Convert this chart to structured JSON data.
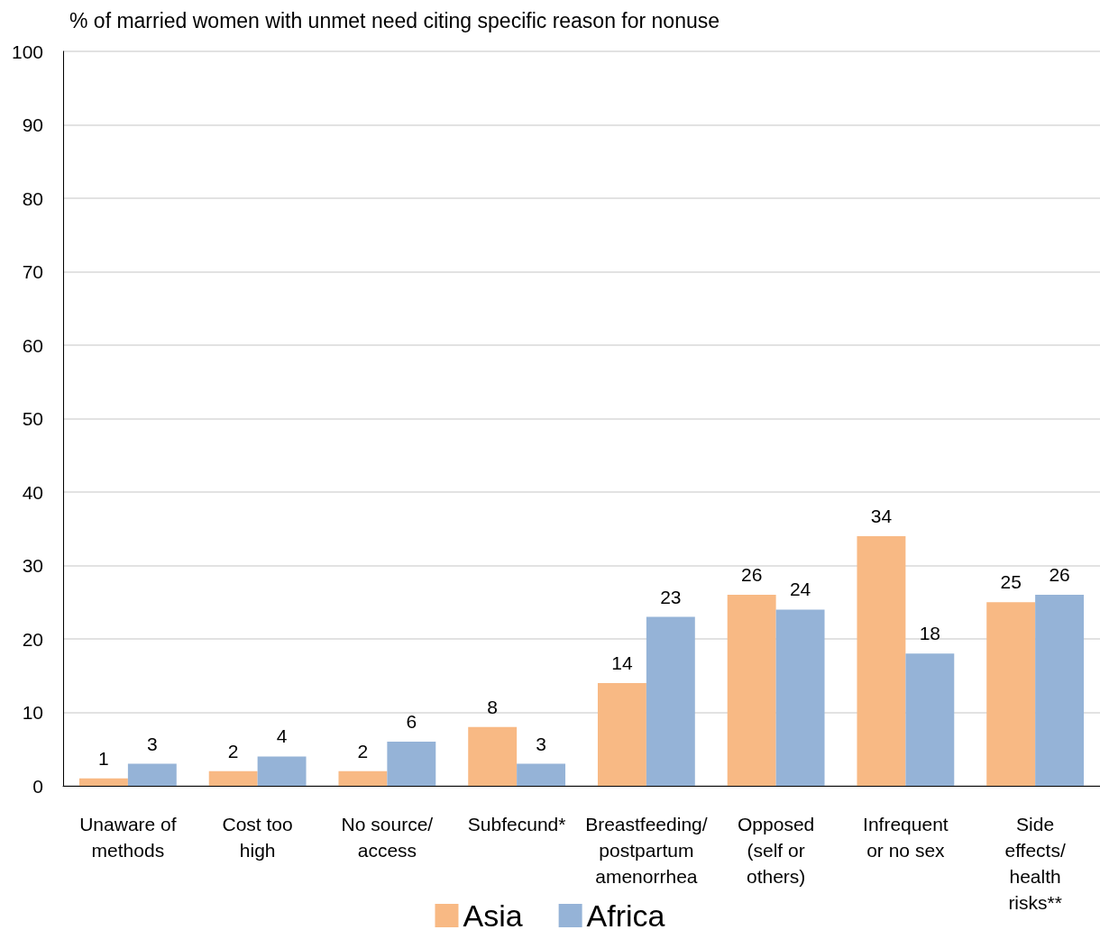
{
  "chart_data": {
    "type": "bar",
    "title": "% of married women with unmet need citing specific reason for nonuse",
    "categories": [
      "Unaware of methods",
      "Cost too high",
      "No source/access",
      "Subfecund*",
      "Breastfeeding/ postpartum amenorrhea",
      "Opposed (self or others)",
      "Infrequent or no sex",
      "Side effects/ health risks**"
    ],
    "series": [
      {
        "name": "Asia",
        "color": "#f8b984",
        "values": [
          1,
          2,
          2,
          8,
          14,
          26,
          34,
          25
        ]
      },
      {
        "name": "Africa",
        "color": "#95b3d7",
        "values": [
          3,
          4,
          6,
          3,
          23,
          24,
          18,
          26
        ]
      }
    ],
    "ylim": [
      0,
      100
    ],
    "yticks": [
      0,
      10,
      20,
      30,
      40,
      50,
      60,
      70,
      80,
      90,
      100
    ],
    "grid": "y",
    "legend": "bottom",
    "data_labels": true
  }
}
